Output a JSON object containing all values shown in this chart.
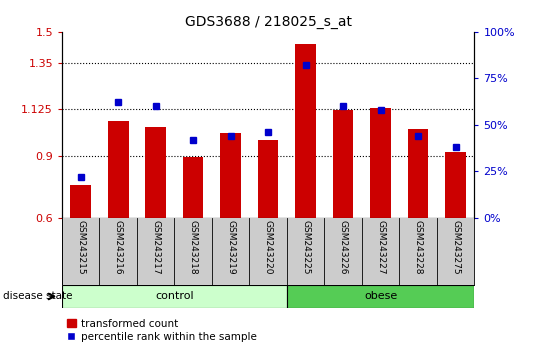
{
  "title": "GDS3688 / 218025_s_at",
  "samples": [
    "GSM243215",
    "GSM243216",
    "GSM243217",
    "GSM243218",
    "GSM243219",
    "GSM243220",
    "GSM243225",
    "GSM243226",
    "GSM243227",
    "GSM243228",
    "GSM243275"
  ],
  "transformed_count": [
    0.76,
    1.07,
    1.04,
    0.895,
    1.01,
    0.975,
    1.44,
    1.12,
    1.13,
    1.03,
    0.92
  ],
  "percentile_rank": [
    22,
    62,
    60,
    42,
    44,
    46,
    82,
    60,
    58,
    44,
    38
  ],
  "ylim_left": [
    0.6,
    1.5
  ],
  "ylim_right": [
    0,
    100
  ],
  "yticks_left": [
    0.6,
    0.9,
    1.125,
    1.35,
    1.5
  ],
  "yticks_right": [
    0,
    25,
    50,
    75,
    100
  ],
  "ytick_labels_left": [
    "0.6",
    "0.9",
    "1.125",
    "1.35",
    "1.5"
  ],
  "ytick_labels_right": [
    "0%",
    "25%",
    "50%",
    "75%",
    "100%"
  ],
  "bar_color": "#cc0000",
  "marker_color": "#0000cc",
  "control_samples": 6,
  "obese_samples": 5,
  "control_label": "control",
  "obese_label": "obese",
  "disease_state_label": "disease state",
  "legend_bar_label": "transformed count",
  "legend_marker_label": "percentile rank within the sample",
  "control_color": "#ccffcc",
  "obese_color": "#55cc55",
  "grid_color": "#000000",
  "bg_color": "#ffffff",
  "plot_bg_color": "#ffffff",
  "tick_bg_color": "#cccccc"
}
